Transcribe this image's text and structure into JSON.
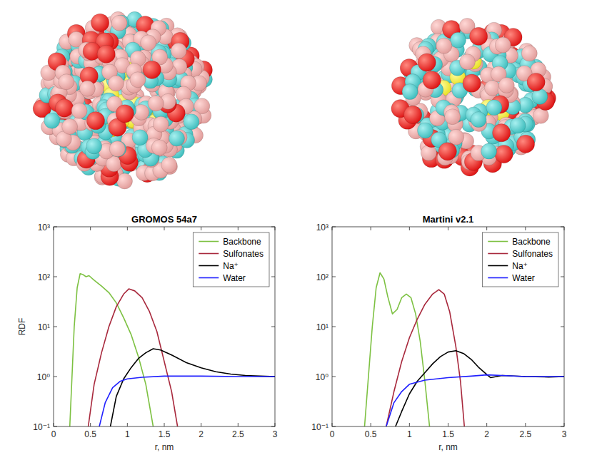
{
  "chart_data": [
    {
      "type": "line",
      "title": "GROMOS 54a7",
      "xlabel": "r, nm",
      "ylabel": "RDF",
      "log": "y",
      "legend": "top-right",
      "xlim": [
        0,
        3
      ],
      "xticks": [
        0,
        0.5,
        1,
        1.5,
        2,
        2.5,
        3
      ],
      "ylim": [
        0.1,
        1000
      ],
      "yticks": [
        {
          "value": 0.1,
          "label": "10⁻¹"
        },
        {
          "value": 1,
          "label": "10⁰"
        },
        {
          "value": 10,
          "label": "10¹"
        },
        {
          "value": 100,
          "label": "10²"
        },
        {
          "value": 1000,
          "label": "10³"
        }
      ],
      "series": [
        {
          "name": "Backbone",
          "color": "#7dc142",
          "x": [
            0.22,
            0.25,
            0.28,
            0.32,
            0.36,
            0.4,
            0.44,
            0.48,
            0.55,
            0.65,
            0.75,
            0.85,
            0.95,
            1.05,
            1.15,
            1.25,
            1.35
          ],
          "values": [
            0.1,
            1,
            10,
            60,
            115,
            110,
            100,
            105,
            85,
            65,
            48,
            30,
            15,
            7,
            2.5,
            0.7,
            0.1
          ]
        },
        {
          "name": "Sulfonates",
          "color": "#a8283c",
          "x": [
            0.47,
            0.55,
            0.65,
            0.75,
            0.85,
            0.95,
            1.02,
            1.1,
            1.2,
            1.3,
            1.4,
            1.5,
            1.6,
            1.68
          ],
          "values": [
            0.1,
            0.7,
            3,
            10,
            25,
            45,
            57,
            52,
            38,
            20,
            8,
            2,
            0.5,
            0.1
          ]
        },
        {
          "name": "Na⁺",
          "color": "#000000",
          "x": [
            0.77,
            0.85,
            0.95,
            1.05,
            1.15,
            1.25,
            1.35,
            1.45,
            1.6,
            1.8,
            2.0,
            2.2,
            2.4,
            2.6,
            2.8,
            3.0
          ],
          "values": [
            0.1,
            0.4,
            0.9,
            1.5,
            2.3,
            3,
            3.6,
            3.4,
            2.7,
            1.9,
            1.5,
            1.25,
            1.12,
            1.05,
            1.02,
            1.0
          ]
        },
        {
          "name": "Water",
          "color": "#1f1fff",
          "x": [
            0.62,
            0.7,
            0.8,
            0.9,
            1.0,
            1.2,
            1.5,
            2.0,
            2.5,
            3.0
          ],
          "values": [
            0.1,
            0.3,
            0.6,
            0.8,
            0.9,
            0.97,
            1.02,
            1.02,
            1.0,
            1.0
          ]
        }
      ]
    },
    {
      "type": "line",
      "title": "Martini v2.1",
      "xlabel": "r, nm",
      "log": "y",
      "legend": "top-right",
      "xlim": [
        0,
        3
      ],
      "xticks": [
        0,
        0.5,
        1,
        1.5,
        2,
        2.5,
        3
      ],
      "ylim": [
        0.1,
        1000
      ],
      "yticks": [
        {
          "value": 0.1,
          "label": "10⁻¹"
        },
        {
          "value": 1,
          "label": "10⁰"
        },
        {
          "value": 10,
          "label": "10¹"
        },
        {
          "value": 100,
          "label": "10²"
        },
        {
          "value": 1000,
          "label": "10³"
        }
      ],
      "series": [
        {
          "name": "Backbone",
          "color": "#7dc142",
          "x": [
            0.42,
            0.47,
            0.52,
            0.57,
            0.62,
            0.67,
            0.72,
            0.78,
            0.84,
            0.9,
            0.96,
            1.02,
            1.08,
            1.14,
            1.2,
            1.26
          ],
          "values": [
            0.1,
            1,
            10,
            60,
            120,
            90,
            40,
            18,
            22,
            38,
            45,
            38,
            18,
            5,
            0.8,
            0.1
          ]
        },
        {
          "name": "Sulfonates",
          "color": "#a8283c",
          "x": [
            0.7,
            0.8,
            0.9,
            1.0,
            1.1,
            1.2,
            1.3,
            1.38,
            1.45,
            1.52,
            1.6,
            1.66,
            1.71
          ],
          "values": [
            0.1,
            0.5,
            2,
            6,
            14,
            28,
            45,
            55,
            45,
            20,
            4,
            0.8,
            0.1
          ]
        },
        {
          "name": "Na⁺",
          "color": "#000000",
          "x": [
            0.82,
            0.9,
            1.0,
            1.1,
            1.2,
            1.3,
            1.4,
            1.5,
            1.6,
            1.7,
            1.8,
            1.9,
            2.0,
            2.05,
            2.2,
            2.5,
            2.8,
            3.0
          ],
          "values": [
            0.1,
            0.2,
            0.45,
            0.8,
            1.2,
            1.8,
            2.5,
            3.1,
            3.3,
            2.9,
            2.2,
            1.5,
            1.1,
            0.95,
            1.05,
            1.0,
            0.98,
            1.0
          ]
        },
        {
          "name": "Water",
          "color": "#1f1fff",
          "x": [
            0.7,
            0.8,
            0.9,
            1.0,
            1.2,
            1.5,
            1.8,
            2.0,
            2.2,
            2.5,
            3.0
          ],
          "values": [
            0.1,
            0.3,
            0.5,
            0.7,
            0.85,
            0.95,
            1.02,
            1.08,
            1.05,
            1.0,
            1.0
          ]
        }
      ]
    }
  ]
}
